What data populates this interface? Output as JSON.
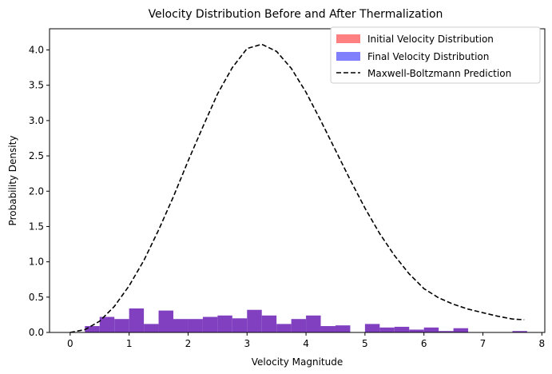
{
  "chart_data": {
    "type": "bar",
    "title": "Velocity Distribution Before and After Thermalization",
    "xlabel": "Velocity Magnitude",
    "ylabel": "Probability Density",
    "xlim": [
      -0.35,
      8.05
    ],
    "ylim": [
      0,
      4.3
    ],
    "xticks": [
      0,
      1,
      2,
      3,
      4,
      5,
      6,
      7,
      8
    ],
    "yticks": [
      0.0,
      0.5,
      1.0,
      1.5,
      2.0,
      2.5,
      3.0,
      3.5,
      4.0
    ],
    "xtick_labels": [
      "0",
      "1",
      "2",
      "3",
      "4",
      "5",
      "6",
      "7",
      "8"
    ],
    "ytick_labels": [
      "0.0",
      "0.5",
      "1.0",
      "1.5",
      "2.0",
      "2.5",
      "3.0",
      "3.5",
      "4.0"
    ],
    "grid": false,
    "legend_position": "top-right",
    "histogram": {
      "bin_width": 0.25,
      "bin_edges_start": 0.25,
      "heights": [
        0.09,
        0.22,
        0.19,
        0.34,
        0.12,
        0.31,
        0.19,
        0.19,
        0.22,
        0.24,
        0.2,
        0.32,
        0.24,
        0.12,
        0.19,
        0.24,
        0.09,
        0.1,
        0,
        0.12,
        0.07,
        0.08,
        0.04,
        0.07,
        0.02,
        0.06,
        0,
        0,
        0,
        0.02
      ]
    },
    "series": [
      {
        "name": "Initial Velocity Distribution",
        "color": "#ff8080",
        "kind": "histogram"
      },
      {
        "name": "Final Velocity Distribution",
        "color": "#8080ff",
        "kind": "histogram"
      },
      {
        "name": "Maxwell-Boltzmann Prediction",
        "color": "#000000",
        "kind": "dashed-line",
        "x": [
          0.0,
          0.25,
          0.5,
          0.75,
          1.0,
          1.25,
          1.5,
          1.75,
          2.0,
          2.25,
          2.5,
          2.75,
          3.0,
          3.25,
          3.5,
          3.75,
          4.0,
          4.25,
          4.5,
          4.75,
          5.0,
          5.25,
          5.5,
          5.75,
          6.0,
          6.25,
          6.5,
          6.75,
          7.0,
          7.25,
          7.5,
          7.7
        ],
        "y": [
          0.0,
          0.04,
          0.16,
          0.37,
          0.66,
          1.02,
          1.45,
          1.92,
          2.43,
          2.91,
          3.38,
          3.75,
          4.02,
          4.08,
          3.98,
          3.74,
          3.4,
          3.0,
          2.58,
          2.16,
          1.76,
          1.4,
          1.09,
          0.83,
          0.62,
          0.49,
          0.4,
          0.33,
          0.28,
          0.23,
          0.19,
          0.18
        ]
      }
    ],
    "overlap_color": "#8040c0"
  }
}
